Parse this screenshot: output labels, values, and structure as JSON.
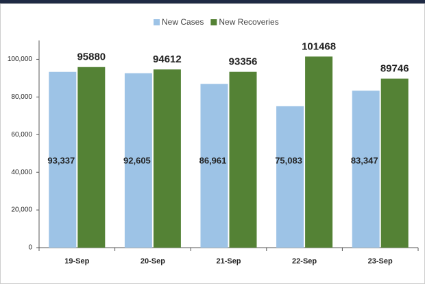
{
  "chart_data": {
    "type": "bar",
    "categories": [
      "19-Sep",
      "20-Sep",
      "21-Sep",
      "22-Sep",
      "23-Sep"
    ],
    "series": [
      {
        "name": "New Cases",
        "color": "#9dc3e6",
        "values": [
          93337,
          92605,
          86961,
          75083,
          83347
        ],
        "value_labels": [
          "93,337",
          "92,605",
          "86,961",
          "75,083",
          "83,347"
        ]
      },
      {
        "name": "New Recoveries",
        "color": "#548235",
        "values": [
          95880,
          94612,
          93356,
          101468,
          89746
        ]
      }
    ],
    "ylim": [
      0,
      110000
    ],
    "yticks": [
      0,
      {
        "value": 20000,
        "label": "20,000"
      },
      {
        "value": 40000,
        "label": "40,000"
      },
      {
        "value": 60000,
        "label": "60,000"
      },
      {
        "value": 80000,
        "label": "80,000"
      },
      {
        "value": 100000,
        "label": "100,000"
      }
    ]
  }
}
